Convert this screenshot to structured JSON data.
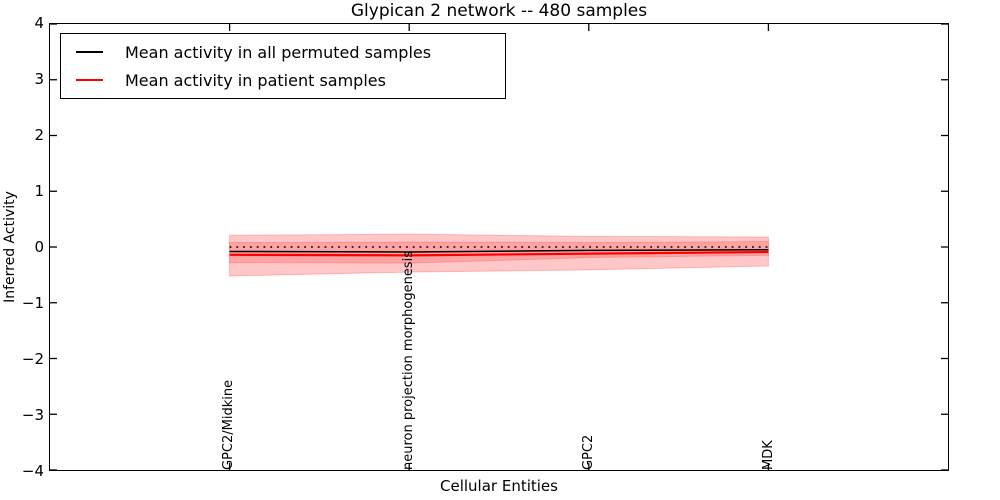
{
  "figure": {
    "background": "#ffffff",
    "axis_color": "#000000"
  },
  "legend": {
    "items": [
      {
        "label": "Mean activity in all permuted samples",
        "color": "#000000",
        "style": "solid"
      },
      {
        "label": "Mean activity in patient samples",
        "color": "#ff0000",
        "style": "solid"
      }
    ]
  },
  "chart_data": {
    "type": "line",
    "title": "Glypican 2 network -- 480 samples",
    "xlabel": "Cellular Entities",
    "ylabel": "Inferred Activity",
    "xlim": [
      -1,
      4
    ],
    "ylim": [
      -4,
      4
    ],
    "grid": false,
    "legend_position": "upper-left",
    "categories": [
      "GPC2/Midkine",
      "neuron projection morphogenesis",
      "GPC2",
      "MDK"
    ],
    "x": [
      0,
      1,
      2,
      3
    ],
    "y_tick_values": [
      4,
      3,
      2,
      1,
      0,
      -1,
      -2,
      -3,
      -4
    ],
    "y_tick_labels": [
      "4",
      "3",
      "2",
      "1",
      "0",
      "−1",
      "−2",
      "−3",
      "−4"
    ],
    "series": [
      {
        "name": "Mean activity in all permuted samples",
        "color": "#000000",
        "style": "solid",
        "width": 1.5,
        "values": [
          -0.08,
          -0.09,
          -0.06,
          -0.05
        ]
      },
      {
        "name": "Mean activity in patient samples",
        "color": "#ff0000",
        "style": "solid",
        "width": 2.2,
        "values": [
          -0.14,
          -0.15,
          -0.12,
          -0.09
        ]
      },
      {
        "name": "zero reference",
        "color": "#000000",
        "style": "dotted",
        "width": 1.5,
        "values": [
          0,
          0,
          0,
          0
        ]
      }
    ],
    "bands": [
      {
        "name": "patient std band outer",
        "color": "#ff0000",
        "alpha": 0.22,
        "upper": [
          0.21,
          0.23,
          0.19,
          0.18
        ],
        "lower": [
          -0.52,
          -0.45,
          -0.41,
          -0.34
        ]
      },
      {
        "name": "std band inner",
        "color": "#ff0000",
        "alpha": 0.18,
        "upper": [
          0.08,
          0.09,
          0.08,
          0.1
        ],
        "lower": [
          -0.28,
          -0.29,
          -0.19,
          -0.15
        ]
      }
    ]
  }
}
